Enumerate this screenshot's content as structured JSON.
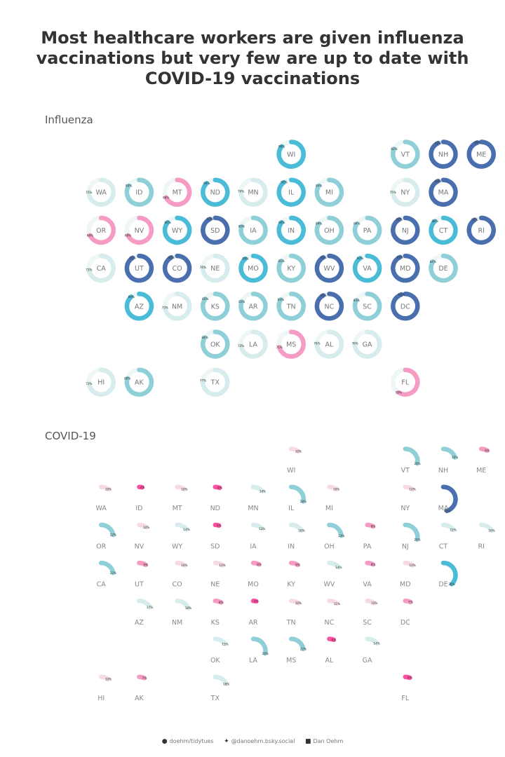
{
  "title": "Most healthcare workers are given influenza vaccinations but very few are up to date with COVID-19 vaccinations",
  "footer": {
    "github": "doehm/tidytues",
    "bluesky": "@danoehm.bsky.social",
    "linkedin": "Dan Oehm",
    "github_icon": "github-icon",
    "bluesky_icon": "butterfly-icon",
    "linkedin_icon": "linkedin-icon"
  },
  "chart_data": [
    {
      "type": "donut-grid",
      "title": "Influenza",
      "unit": "%",
      "states": [
        {
          "state": "WI",
          "value": 86
        },
        {
          "state": "VT",
          "value": 82
        },
        {
          "state": "NH",
          "value": 93
        },
        {
          "state": "ME",
          "value": 95
        },
        {
          "state": "WA",
          "value": 75
        },
        {
          "state": "ID",
          "value": 84
        },
        {
          "state": "MT",
          "value": 68
        },
        {
          "state": "ND",
          "value": 88
        },
        {
          "state": "MN",
          "value": 76
        },
        {
          "state": "IL",
          "value": 90
        },
        {
          "state": "MI",
          "value": 84
        },
        {
          "state": "NY",
          "value": 75
        },
        {
          "state": "MA",
          "value": 93
        },
        {
          "state": "OR",
          "value": 68
        },
        {
          "state": "NV",
          "value": 68
        },
        {
          "state": "WY",
          "value": 86
        },
        {
          "state": "SD",
          "value": 93
        },
        {
          "state": "IA",
          "value": 80
        },
        {
          "state": "IN",
          "value": 86
        },
        {
          "state": "OH",
          "value": 84
        },
        {
          "state": "PA",
          "value": 84
        },
        {
          "state": "NJ",
          "value": 92
        },
        {
          "state": "CT",
          "value": 88
        },
        {
          "state": "RI",
          "value": 91
        },
        {
          "state": "CA",
          "value": 73
        },
        {
          "state": "UT",
          "value": 91
        },
        {
          "state": "CO",
          "value": 92
        },
        {
          "state": "NE",
          "value": 76
        },
        {
          "state": "MO",
          "value": 89
        },
        {
          "state": "KY",
          "value": 85
        },
        {
          "state": "WV",
          "value": 92
        },
        {
          "state": "VA",
          "value": 90
        },
        {
          "state": "MD",
          "value": 93
        },
        {
          "state": "DE",
          "value": 84
        },
        {
          "state": "AZ",
          "value": 89
        },
        {
          "state": "NM",
          "value": 73
        },
        {
          "state": "KS",
          "value": 85
        },
        {
          "state": "AR",
          "value": 81
        },
        {
          "state": "TN",
          "value": 84
        },
        {
          "state": "NC",
          "value": 92
        },
        {
          "state": "SC",
          "value": 83
        },
        {
          "state": "DC",
          "value": 95
        },
        {
          "state": "OK",
          "value": 84
        },
        {
          "state": "LA",
          "value": 73
        },
        {
          "state": "MS",
          "value": 71
        },
        {
          "state": "AL",
          "value": 76
        },
        {
          "state": "GA",
          "value": 76
        },
        {
          "state": "HI",
          "value": 73
        },
        {
          "state": "AK",
          "value": 80
        },
        {
          "state": "TX",
          "value": 77
        },
        {
          "state": "FL",
          "value": 59
        }
      ]
    },
    {
      "type": "donut-grid",
      "title": "COVID-19",
      "unit": "%",
      "states": [
        {
          "state": "WI",
          "value": 10
        },
        {
          "state": "VT",
          "value": 28
        },
        {
          "state": "NH",
          "value": 20
        },
        {
          "state": "ME",
          "value": 8
        },
        {
          "state": "WA",
          "value": 10
        },
        {
          "state": "ID",
          "value": 4
        },
        {
          "state": "MT",
          "value": 10
        },
        {
          "state": "ND",
          "value": 6
        },
        {
          "state": "MN",
          "value": 14
        },
        {
          "state": "IL",
          "value": 28
        },
        {
          "state": "MI",
          "value": 10
        },
        {
          "state": "NY",
          "value": 10
        },
        {
          "state": "MA",
          "value": 45
        },
        {
          "state": "OR",
          "value": 22
        },
        {
          "state": "NV",
          "value": 10
        },
        {
          "state": "WY",
          "value": 14
        },
        {
          "state": "SD",
          "value": 5
        },
        {
          "state": "IA",
          "value": 13
        },
        {
          "state": "IN",
          "value": 16
        },
        {
          "state": "OH",
          "value": 23
        },
        {
          "state": "PA",
          "value": 8
        },
        {
          "state": "NJ",
          "value": 28
        },
        {
          "state": "CT",
          "value": 15
        },
        {
          "state": "RI",
          "value": 16
        },
        {
          "state": "CA",
          "value": 22
        },
        {
          "state": "UT",
          "value": 9
        },
        {
          "state": "CO",
          "value": 10
        },
        {
          "state": "NE",
          "value": 10
        },
        {
          "state": "MO",
          "value": 8
        },
        {
          "state": "KY",
          "value": 9
        },
        {
          "state": "WV",
          "value": 14
        },
        {
          "state": "VA",
          "value": 8
        },
        {
          "state": "MD",
          "value": 10
        },
        {
          "state": "DE",
          "value": 38
        },
        {
          "state": "AZ",
          "value": 17
        },
        {
          "state": "NM",
          "value": 18
        },
        {
          "state": "KS",
          "value": 8
        },
        {
          "state": "AR",
          "value": 4
        },
        {
          "state": "TN",
          "value": 10
        },
        {
          "state": "NC",
          "value": 11
        },
        {
          "state": "SC",
          "value": 10
        },
        {
          "state": "DC",
          "value": 7
        },
        {
          "state": "OK",
          "value": 15
        },
        {
          "state": "LA",
          "value": 28
        },
        {
          "state": "MS",
          "value": 22
        },
        {
          "state": "AL",
          "value": 6
        },
        {
          "state": "GA",
          "value": 14
        },
        {
          "state": "HI",
          "value": 10
        },
        {
          "state": "AK",
          "value": 7
        },
        {
          "state": "TX",
          "value": 18
        },
        {
          "state": "FL",
          "value": 6
        }
      ]
    }
  ],
  "colors": {
    "low": "#ff4fa3",
    "lowPale": "#f6dbe6",
    "mid": "#d7ecec",
    "midTeal": "#8fd0d8",
    "high": "#4bbcd8",
    "top": "#4a6fae",
    "track": "#eef6f6"
  }
}
